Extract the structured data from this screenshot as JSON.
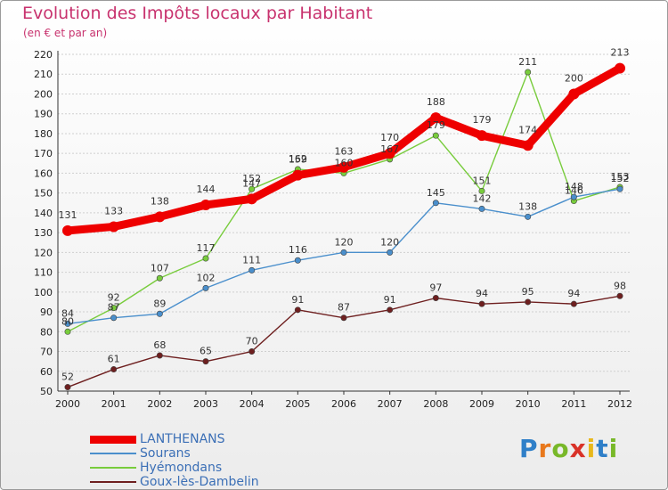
{
  "chart_data": {
    "type": "line",
    "title": "Evolution des Impôts locaux par Habitant",
    "subtitle": "(en € et par an)",
    "categories": [
      "2000",
      "2001",
      "2002",
      "2003",
      "2004",
      "2005",
      "2006",
      "2007",
      "2008",
      "2009",
      "2010",
      "2011",
      "2012"
    ],
    "ylim": [
      50,
      220
    ],
    "yticks": [
      50,
      60,
      70,
      80,
      90,
      100,
      110,
      120,
      130,
      140,
      150,
      160,
      170,
      180,
      190,
      200,
      210,
      220
    ],
    "series": [
      {
        "name": "LANTHENANS",
        "color": "#ee0000",
        "values": [
          131,
          133,
          138,
          144,
          147,
          159,
          163,
          170,
          188,
          179,
          174,
          200,
          213
        ],
        "labels": [
          "131",
          "133",
          "138",
          "144",
          "147",
          "159",
          "163",
          "170",
          "188",
          "179",
          "174",
          "200",
          "213"
        ]
      },
      {
        "name": "Sourans",
        "color": "#4a8fcc",
        "values": [
          84,
          87,
          89,
          102,
          111,
          116,
          120,
          120,
          145,
          142,
          138,
          148,
          152
        ],
        "labels": [
          "84",
          "87",
          "89",
          "102",
          "111",
          "116",
          "120",
          "120",
          "145",
          "142",
          "138",
          "148",
          "152"
        ]
      },
      {
        "name": "Hyémondans",
        "color": "#78cc3c",
        "values": [
          80,
          92,
          107,
          117,
          152,
          162,
          160,
          167,
          179,
          151,
          211,
          146,
          153
        ],
        "labels": [
          "80",
          "92",
          "107",
          "117",
          "152",
          "162",
          "160",
          "167",
          "179",
          "151",
          "211",
          "146",
          "153"
        ]
      },
      {
        "name": "Goux-lès-Dambelin",
        "color": "#6e1f1f",
        "values": [
          52,
          61,
          68,
          65,
          70,
          91,
          87,
          91,
          97,
          94,
          95,
          94,
          98
        ],
        "labels": [
          "52",
          "61",
          "68",
          "65",
          "70",
          "91",
          "87",
          "91",
          "97",
          "94",
          "95",
          "94",
          "98"
        ]
      }
    ]
  },
  "brand": {
    "letters": [
      "P",
      "r",
      "o",
      "x",
      "i",
      "t",
      "i"
    ],
    "colors": [
      "#2f7fc8",
      "#e8781c",
      "#78b829",
      "#d93228",
      "#e8b81c",
      "#2f7fc8",
      "#78b829"
    ]
  }
}
